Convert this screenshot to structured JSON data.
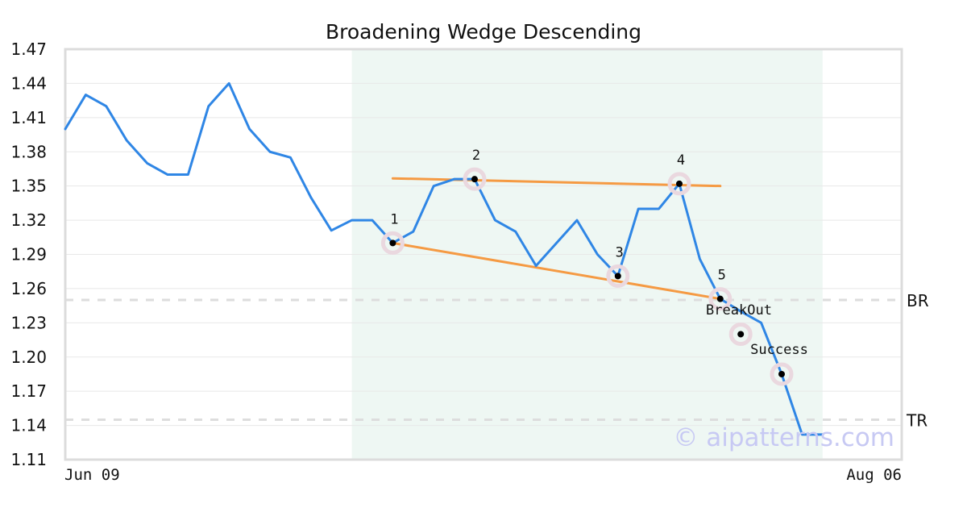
{
  "chart_data": {
    "type": "line",
    "title": "Broadening Wedge Descending",
    "xlabel": "",
    "ylabel": "",
    "x_tick_labels": [
      "Jun 09",
      "Aug 06"
    ],
    "y_tick_labels": [
      "1.47",
      "1.44",
      "1.41",
      "1.38",
      "1.35",
      "1.32",
      "1.29",
      "1.26",
      "1.23",
      "1.20",
      "1.17",
      "1.14",
      "1.11"
    ],
    "ylim": [
      1.11,
      1.47
    ],
    "grid": true,
    "series": [
      {
        "values": [
          1.4,
          1.43,
          1.42,
          1.39,
          1.37,
          1.36,
          1.36,
          1.42,
          1.44,
          1.4,
          1.38,
          1.375,
          1.34,
          1.311,
          1.32,
          1.32,
          1.3,
          1.31,
          1.35,
          1.356,
          1.356,
          1.32,
          1.31,
          1.28,
          1.3,
          1.32,
          1.29,
          1.271,
          1.33,
          1.33,
          1.352,
          1.286,
          1.251,
          1.24,
          1.23,
          1.185,
          1.132,
          1.132
        ],
        "color": "#2f86e5"
      }
    ],
    "highlight_range": [
      14,
      37
    ],
    "trendlines": [
      {
        "from": [
          16,
          1.3
        ],
        "to": [
          32,
          1.251
        ],
        "color": "#f59a43"
      },
      {
        "from": [
          16,
          1.3567
        ],
        "to": [
          32,
          1.35
        ],
        "color": "#f59a43"
      }
    ],
    "points": [
      {
        "label": "1",
        "x": 16,
        "y": 1.3
      },
      {
        "label": "2",
        "x": 20,
        "y": 1.356
      },
      {
        "label": "3",
        "x": 27,
        "y": 1.271
      },
      {
        "label": "4",
        "x": 30,
        "y": 1.352
      },
      {
        "label": "5",
        "x": 32,
        "y": 1.251
      }
    ],
    "events": [
      {
        "label": "BreakOut",
        "x": 33,
        "y": 1.22
      },
      {
        "label": "Success",
        "x": 35,
        "y": 1.185
      }
    ],
    "levels": [
      {
        "label": "BR",
        "value": 1.25
      },
      {
        "label": "TR",
        "value": 1.145
      }
    ],
    "watermark": "© aipatterns.com",
    "colors": {
      "line": "#2f86e5",
      "trend": "#f59a43",
      "highlight": "#eef7f3",
      "level": "#dddddd",
      "marker_halo": "#ead8df",
      "marker_dot": "#000000"
    }
  }
}
